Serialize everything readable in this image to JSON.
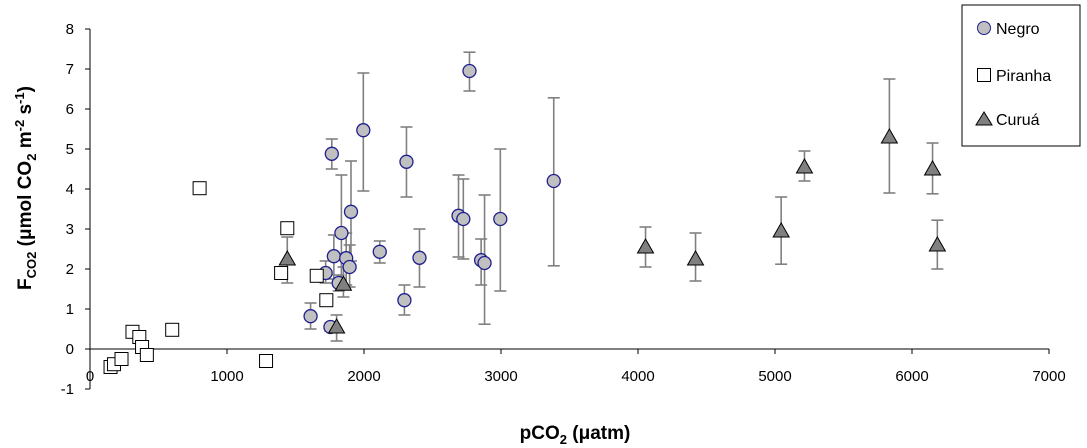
{
  "chart_data": {
    "type": "scatter",
    "x_axis": {
      "title_main": "pCO",
      "title_sub": "2",
      "title_rest": " (",
      "title_mu": "μ",
      "title_unit": "atm)",
      "range": [
        0,
        7000
      ],
      "ticks": [
        0,
        1000,
        2000,
        3000,
        4000,
        5000,
        6000,
        7000
      ],
      "tick_labels": [
        "0",
        "1000",
        "2000",
        "3000",
        "4000",
        "5000",
        "6000",
        "7000"
      ]
    },
    "y_axis": {
      "title_main": "F",
      "title_sub": "CO2",
      "title_rest": " (",
      "title_mu": "μ",
      "title_unit1": "mol CO",
      "title_sub2": "2",
      "title_unit2": " m",
      "title_sup1": "-2",
      "title_unit3": " s",
      "title_sup2": "-1",
      "title_close": ")",
      "range": [
        -1,
        8
      ],
      "ticks": [
        -1,
        0,
        1,
        2,
        3,
        4,
        5,
        6,
        7,
        8
      ],
      "tick_labels": [
        "-1",
        "0",
        "1",
        "2",
        "3",
        "4",
        "5",
        "6",
        "7",
        "8"
      ]
    },
    "grid": false,
    "legend_position": "top-right",
    "colors": {
      "negro_fill": "#c0c0c0",
      "negro_stroke": "#1f1f8f",
      "piranha_fill": "#ffffff",
      "piranha_stroke": "#000000",
      "curua_fill": "#808080",
      "curua_stroke": "#000000",
      "error_bar": "#808080"
    },
    "series": [
      {
        "name": "Negro",
        "marker": "circle",
        "points": [
          {
            "x": 1610,
            "y": 0.82,
            "lo": 0.5,
            "hi": 1.15
          },
          {
            "x": 1755,
            "y": 0.55,
            "lo": 0.45,
            "hi": 0.65
          },
          {
            "x": 1780,
            "y": 2.32,
            "lo": 1.75,
            "hi": 2.85
          },
          {
            "x": 1720,
            "y": 1.9,
            "lo": 1.65,
            "hi": 2.2
          },
          {
            "x": 1765,
            "y": 4.88,
            "lo": 4.5,
            "hi": 5.25
          },
          {
            "x": 1815,
            "y": 1.65,
            "lo": 1.45,
            "hi": 1.85
          },
          {
            "x": 1835,
            "y": 2.9,
            "lo": 1.5,
            "hi": 4.35
          },
          {
            "x": 1870,
            "y": 2.27,
            "lo": 1.6,
            "hi": 2.9
          },
          {
            "x": 1895,
            "y": 2.05,
            "lo": 1.55,
            "hi": 2.6
          },
          {
            "x": 1905,
            "y": 3.43,
            "lo": 2.2,
            "hi": 4.7
          },
          {
            "x": 1995,
            "y": 5.47,
            "lo": 3.95,
            "hi": 6.9
          },
          {
            "x": 2115,
            "y": 2.43,
            "lo": 2.15,
            "hi": 2.7
          },
          {
            "x": 2295,
            "y": 1.22,
            "lo": 0.85,
            "hi": 1.6
          },
          {
            "x": 2310,
            "y": 4.68,
            "lo": 3.8,
            "hi": 5.55
          },
          {
            "x": 2405,
            "y": 2.28,
            "lo": 1.55,
            "hi": 3.0
          },
          {
            "x": 2690,
            "y": 3.33,
            "lo": 2.3,
            "hi": 4.35
          },
          {
            "x": 2725,
            "y": 3.25,
            "lo": 2.25,
            "hi": 4.25
          },
          {
            "x": 2770,
            "y": 6.95,
            "lo": 6.45,
            "hi": 7.42
          },
          {
            "x": 2855,
            "y": 2.22,
            "lo": 1.6,
            "hi": 2.75
          },
          {
            "x": 2880,
            "y": 2.15,
            "lo": 0.62,
            "hi": 3.85
          },
          {
            "x": 2995,
            "y": 3.25,
            "lo": 1.45,
            "hi": 5.0
          },
          {
            "x": 3385,
            "y": 4.2,
            "lo": 2.08,
            "hi": 6.28
          }
        ]
      },
      {
        "name": "Piranha",
        "marker": "square",
        "points": [
          {
            "x": 150,
            "y": -0.45,
            "hi_x": 175
          },
          {
            "x": 175,
            "y": -0.38,
            "hi_x": 200
          },
          {
            "x": 230,
            "y": -0.25,
            "hi_x": 255
          },
          {
            "x": 310,
            "y": 0.43,
            "hi_x": 330
          },
          {
            "x": 360,
            "y": 0.3,
            "hi_x": 380
          },
          {
            "x": 380,
            "y": 0.05,
            "hi_x": 400
          },
          {
            "x": 415,
            "y": -0.15,
            "hi_x": 440
          },
          {
            "x": 600,
            "y": 0.48,
            "hi_x": 630
          },
          {
            "x": 800,
            "y": 4.02,
            "hi_x": 830
          },
          {
            "x": 1285,
            "y": -0.3,
            "hi_x": 1305
          },
          {
            "x": 1395,
            "y": 1.9,
            "hi_x": 1415
          },
          {
            "x": 1440,
            "y": 3.02,
            "hi_x": 1460
          },
          {
            "x": 1655,
            "y": 1.83,
            "hi_x": 1675
          },
          {
            "x": 1725,
            "y": 1.22,
            "hi_x": 1745
          }
        ]
      },
      {
        "name": "Curuá",
        "marker": "triangle",
        "points": [
          {
            "x": 1440,
            "y": 2.25,
            "lo": 1.65,
            "hi": 2.8
          },
          {
            "x": 1800,
            "y": 0.55,
            "lo": 0.2,
            "hi": 0.85
          },
          {
            "x": 1850,
            "y": 1.62,
            "lo": 1.3,
            "hi": 2.05
          },
          {
            "x": 4055,
            "y": 2.55,
            "lo": 2.05,
            "hi": 3.05
          },
          {
            "x": 4420,
            "y": 2.25,
            "lo": 1.7,
            "hi": 2.9
          },
          {
            "x": 5045,
            "y": 2.95,
            "lo": 2.12,
            "hi": 3.8
          },
          {
            "x": 5215,
            "y": 4.55,
            "lo": 4.2,
            "hi": 4.95
          },
          {
            "x": 5835,
            "y": 5.3,
            "lo": 3.9,
            "hi": 6.75
          },
          {
            "x": 6150,
            "y": 4.5,
            "lo": 3.88,
            "hi": 5.15
          },
          {
            "x": 6185,
            "y": 2.6,
            "lo": 2.0,
            "hi": 3.22
          }
        ]
      }
    ]
  }
}
